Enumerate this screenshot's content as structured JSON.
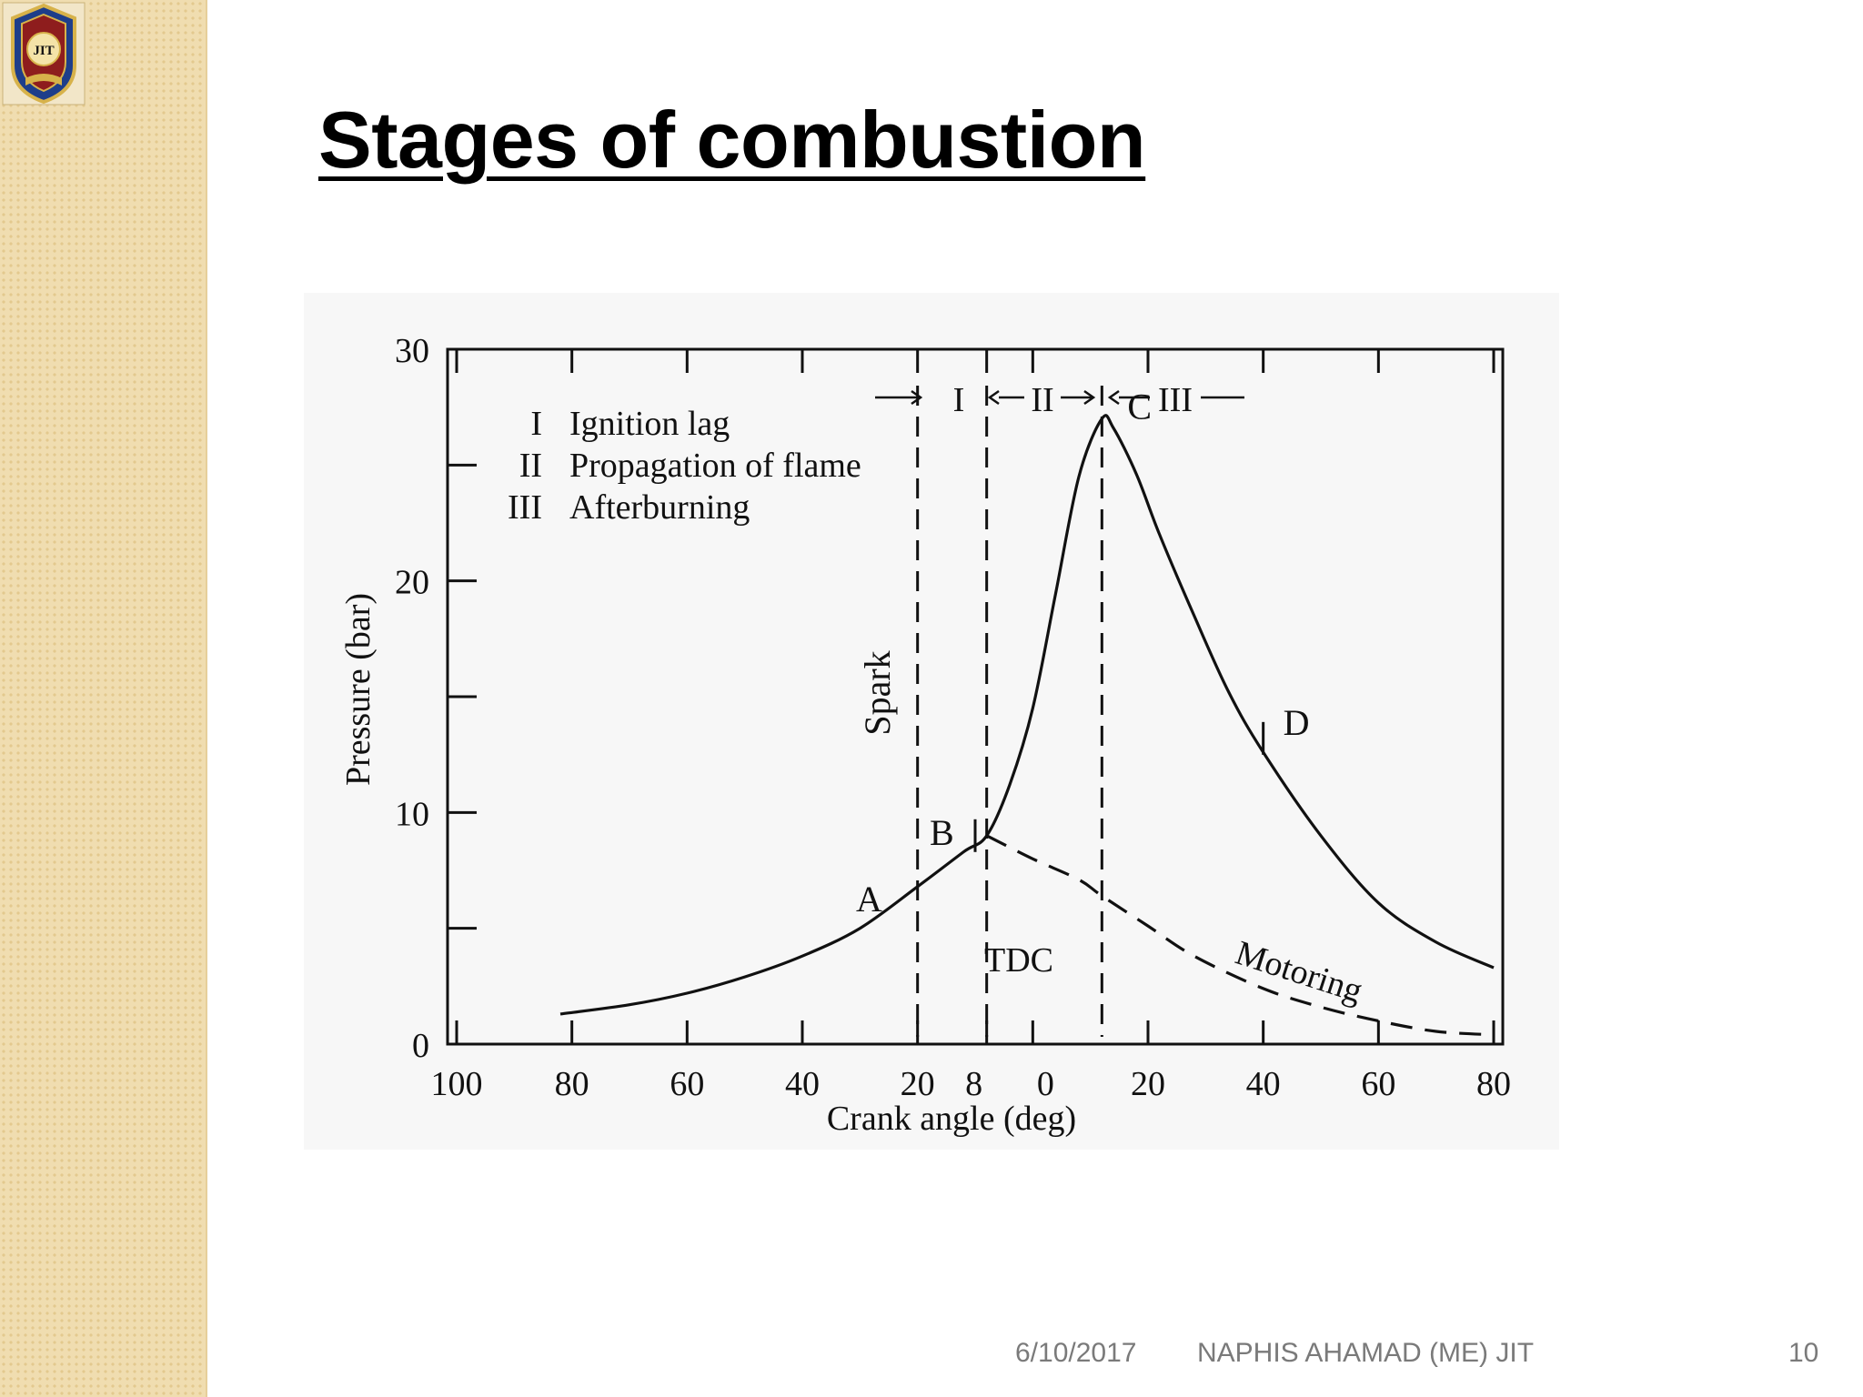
{
  "slide": {
    "title": "Stages of combustion",
    "footer_date": "6/10/2017",
    "footer_author": "NAPHIS AHAMAD (ME) JIT",
    "slide_number": "10",
    "logo_text": "JIT"
  },
  "colors": {
    "strip": "#f0ddb0",
    "ink": "#111111",
    "footer": "#7a7a7a"
  },
  "chart_data": {
    "type": "line",
    "title": "",
    "xlabel": "Crank angle (deg)",
    "ylabel": "Pressure (bar)",
    "x_tick_labels": [
      "100",
      "80",
      "60",
      "40",
      "20",
      "8",
      "0",
      "20",
      "40",
      "60",
      "80"
    ],
    "y_tick_labels": [
      "0",
      "10",
      "20",
      "30"
    ],
    "ylim": [
      0,
      30
    ],
    "xlim": [
      -100,
      80
    ],
    "grid": false,
    "legend": [
      {
        "roman": "I",
        "text": "Ignition lag"
      },
      {
        "roman": "II",
        "text": "Propagation of flame"
      },
      {
        "roman": "III",
        "text": "Afterburning"
      }
    ],
    "stage_labels": [
      "I",
      "II",
      "III"
    ],
    "point_labels": [
      "A",
      "B",
      "C",
      "D"
    ],
    "annotations": {
      "spark": "Spark",
      "tdc": "TDC",
      "motoring": "Motoring"
    },
    "vertical_markers": [
      {
        "name": "spark",
        "x": -20
      },
      {
        "name": "B",
        "x": -8
      },
      {
        "name": "C",
        "x": 12
      }
    ],
    "series": [
      {
        "name": "",
        "style": "solid",
        "x": [
          -82,
          -70,
          -60,
          -50,
          -40,
          -30,
          -20,
          -12,
          -8,
          -4,
          0,
          4,
          8,
          12,
          14,
          18,
          22,
          28,
          34,
          40,
          50,
          60,
          70,
          80
        ],
        "y": [
          1.3,
          1.7,
          2.2,
          2.9,
          3.8,
          5.0,
          6.8,
          8.3,
          9.0,
          11.2,
          14.5,
          19.5,
          24.5,
          27.0,
          26.6,
          24.6,
          22.0,
          18.5,
          15.2,
          12.6,
          9.0,
          6.1,
          4.4,
          3.3
        ]
      },
      {
        "name": "Motoring",
        "style": "dashed",
        "x": [
          -8,
          0,
          8,
          12,
          20,
          28,
          40,
          50,
          60,
          70,
          80
        ],
        "y": [
          9.0,
          8.0,
          7.1,
          6.4,
          5.1,
          3.8,
          2.4,
          1.6,
          1.0,
          0.55,
          0.4
        ]
      }
    ]
  }
}
